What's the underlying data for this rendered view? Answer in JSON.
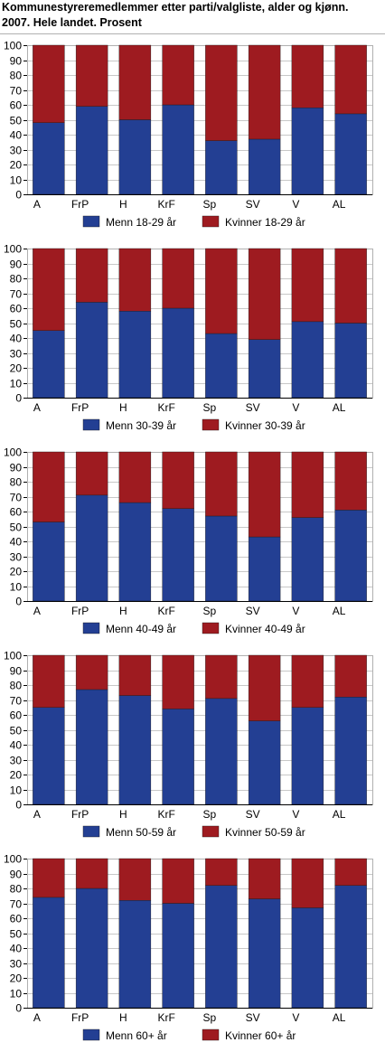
{
  "title_lines": [
    "Kommunestyreremedlemmer etter parti/valgliste, alder og kjønn.",
    "2007. Hele landet. Prosent"
  ],
  "colors": {
    "men": "#233f93",
    "women": "#9e1b20",
    "grid": "#c8c8c8",
    "axis": "#000000",
    "frame": "#b0b0b0"
  },
  "chart_data": [
    {
      "type": "bar",
      "stacked": true,
      "categories": [
        "A",
        "FrP",
        "H",
        "KrF",
        "Sp",
        "SV",
        "V",
        "AL"
      ],
      "series": [
        {
          "name": "Menn 18-29 år",
          "values": [
            48,
            59,
            50,
            60,
            36,
            37,
            58,
            54
          ]
        },
        {
          "name": "Kvinner 18-29 år",
          "values": [
            52,
            41,
            50,
            40,
            64,
            63,
            42,
            46
          ]
        }
      ],
      "ylim": [
        0,
        100
      ],
      "yticks": [
        "0",
        "10",
        "20",
        "30",
        "40",
        "50",
        "60",
        "70",
        "80",
        "90",
        "100"
      ],
      "grid": true,
      "legend": "bottom"
    },
    {
      "type": "bar",
      "stacked": true,
      "categories": [
        "A",
        "FrP",
        "H",
        "KrF",
        "Sp",
        "SV",
        "V",
        "AL"
      ],
      "series": [
        {
          "name": "Menn 30-39 år",
          "values": [
            45,
            64,
            58,
            60,
            43,
            39,
            51,
            50
          ]
        },
        {
          "name": "Kvinner 30-39 år",
          "values": [
            55,
            36,
            42,
            40,
            57,
            61,
            49,
            50
          ]
        }
      ],
      "ylim": [
        0,
        100
      ],
      "yticks": [
        "0",
        "10",
        "20",
        "30",
        "40",
        "50",
        "60",
        "70",
        "80",
        "90",
        "100"
      ],
      "grid": true,
      "legend": "bottom"
    },
    {
      "type": "bar",
      "stacked": true,
      "categories": [
        "A",
        "FrP",
        "H",
        "KrF",
        "Sp",
        "SV",
        "V",
        "AL"
      ],
      "series": [
        {
          "name": "Menn 40-49 år",
          "values": [
            53,
            71,
            66,
            62,
            57,
            43,
            56,
            61
          ]
        },
        {
          "name": "Kvinner 40-49 år",
          "values": [
            47,
            29,
            34,
            38,
            43,
            57,
            44,
            39
          ]
        }
      ],
      "ylim": [
        0,
        100
      ],
      "yticks": [
        "0",
        "10",
        "20",
        "30",
        "40",
        "50",
        "60",
        "70",
        "80",
        "90",
        "100"
      ],
      "grid": true,
      "legend": "bottom"
    },
    {
      "type": "bar",
      "stacked": true,
      "categories": [
        "A",
        "FrP",
        "H",
        "KrF",
        "Sp",
        "SV",
        "V",
        "AL"
      ],
      "series": [
        {
          "name": "Menn 50-59 år",
          "values": [
            65,
            77,
            73,
            64,
            71,
            56,
            65,
            72
          ]
        },
        {
          "name": "Kvinner 50-59 år",
          "values": [
            35,
            23,
            27,
            36,
            29,
            44,
            35,
            28
          ]
        }
      ],
      "ylim": [
        0,
        100
      ],
      "yticks": [
        "0",
        "10",
        "20",
        "30",
        "40",
        "50",
        "60",
        "70",
        "80",
        "90",
        "100"
      ],
      "grid": true,
      "legend": "bottom"
    },
    {
      "type": "bar",
      "stacked": true,
      "categories": [
        "A",
        "FrP",
        "H",
        "KrF",
        "Sp",
        "SV",
        "V",
        "AL"
      ],
      "series": [
        {
          "name": "Menn 60+ år",
          "values": [
            74,
            80,
            72,
            70,
            82,
            73,
            67,
            82
          ]
        },
        {
          "name": "Kvinner 60+ år",
          "values": [
            26,
            20,
            28,
            30,
            18,
            27,
            33,
            18
          ]
        }
      ],
      "ylim": [
        0,
        100
      ],
      "yticks": [
        "0",
        "10",
        "20",
        "30",
        "40",
        "50",
        "60",
        "70",
        "80",
        "90",
        "100"
      ],
      "grid": true,
      "legend": "bottom"
    }
  ]
}
